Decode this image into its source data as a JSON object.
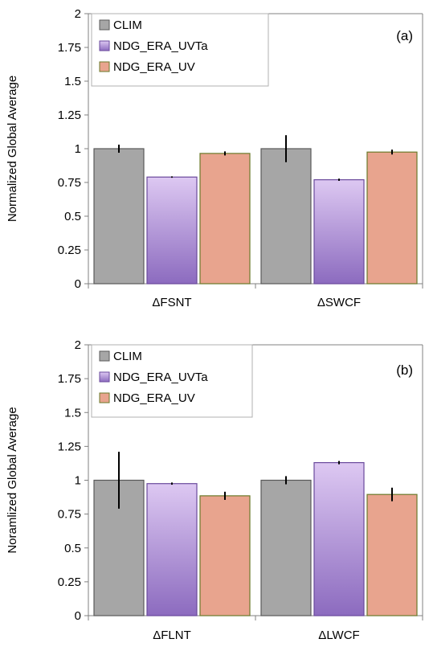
{
  "chart_data": [
    {
      "type": "bar",
      "panel_label": "(a)",
      "ylabel": "Normalized Global Average",
      "ylim": [
        0,
        2
      ],
      "yticks": [
        "0",
        "0.25",
        "0.5",
        "0.75",
        "1",
        "1.25",
        "1.5",
        "1.75",
        "2"
      ],
      "categories": [
        "ΔFSNT",
        "ΔSWCF"
      ],
      "legend_position": "top-left",
      "series": [
        {
          "name": "CLIM",
          "values": [
            1.0,
            1.0
          ],
          "errors": [
            0.03,
            0.1
          ]
        },
        {
          "name": "NDG_ERA_UVTa",
          "values": [
            0.79,
            0.77
          ],
          "errors": [
            0.005,
            0.008
          ]
        },
        {
          "name": "NDG_ERA_UV",
          "values": [
            0.965,
            0.975
          ],
          "errors": [
            0.015,
            0.018
          ]
        }
      ]
    },
    {
      "type": "bar",
      "panel_label": "(b)",
      "ylabel": "Noramlized Global Average",
      "ylim": [
        0,
        2
      ],
      "yticks": [
        "0",
        "0.25",
        "0.5",
        "0.75",
        "1",
        "1.25",
        "1.5",
        "1.75",
        "2"
      ],
      "categories": [
        "ΔFLNT",
        "ΔLWCF"
      ],
      "legend_position": "top-left",
      "series": [
        {
          "name": "CLIM",
          "values": [
            1.0,
            1.0
          ],
          "errors": [
            0.21,
            0.03
          ]
        },
        {
          "name": "NDG_ERA_UVTa",
          "values": [
            0.975,
            1.13
          ],
          "errors": [
            0.008,
            0.012
          ]
        },
        {
          "name": "NDG_ERA_UV",
          "values": [
            0.885,
            0.895
          ],
          "errors": [
            0.03,
            0.05
          ]
        }
      ]
    }
  ],
  "colors": {
    "clim_fill": "#a6a6a6",
    "clim_stroke": "#595959",
    "uvta_top": "#ddc8f2",
    "uvta_bottom": "#8c6bbf",
    "uvta_stroke": "#6a4a9c",
    "uv_fill": "#e8a48e",
    "uv_stroke": "#6b7a2a",
    "axis": "#808080"
  }
}
